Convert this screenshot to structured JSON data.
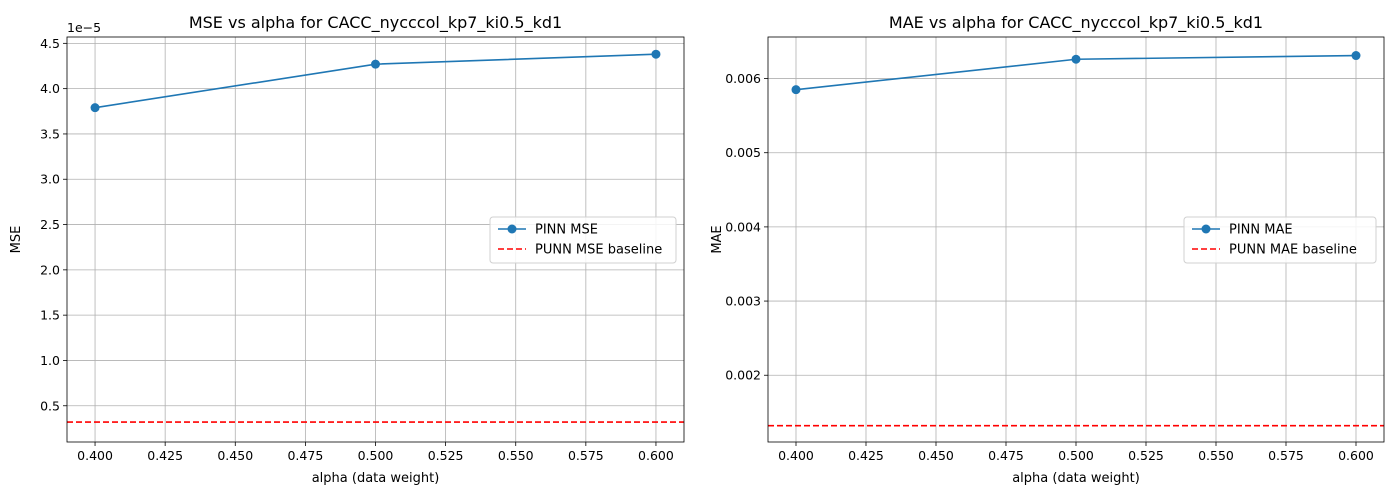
{
  "chart_data": [
    {
      "type": "line",
      "title": "MSE vs alpha for CACC_nycccol_kp7_ki0.5_kd1",
      "xlabel": "alpha (data weight)",
      "ylabel": "MSE",
      "y_offset_label": "1e−5",
      "xlim": [
        0.39,
        0.61
      ],
      "ylim": [
        0.1,
        4.57
      ],
      "x_ticks": [
        0.4,
        0.425,
        0.45,
        0.475,
        0.5,
        0.525,
        0.55,
        0.575,
        0.6
      ],
      "x_tick_labels": [
        "0.400",
        "0.425",
        "0.450",
        "0.475",
        "0.500",
        "0.525",
        "0.550",
        "0.575",
        "0.600"
      ],
      "y_ticks": [
        0.5,
        1.0,
        1.5,
        2.0,
        2.5,
        3.0,
        3.5,
        4.0,
        4.5
      ],
      "y_tick_labels": [
        "0.5",
        "1.0",
        "1.5",
        "2.0",
        "2.5",
        "3.0",
        "3.5",
        "4.0",
        "4.5"
      ],
      "grid": true,
      "legend_position": "center-right",
      "series": [
        {
          "name": "PINN MSE",
          "style": "solid-marker",
          "color": "#1f77b4",
          "x": [
            0.4,
            0.5,
            0.6
          ],
          "y": [
            3.79,
            4.27,
            4.38
          ]
        }
      ],
      "baseline": {
        "name": "PUNN MSE baseline",
        "style": "dashed",
        "color": "#ff0000",
        "y": 0.32
      }
    },
    {
      "type": "line",
      "title": "MAE vs alpha for CACC_nycccol_kp7_ki0.5_kd1",
      "xlabel": "alpha (data weight)",
      "ylabel": "MAE",
      "y_offset_label": "",
      "xlim": [
        0.39,
        0.61
      ],
      "ylim": [
        0.0011,
        0.00656
      ],
      "x_ticks": [
        0.4,
        0.425,
        0.45,
        0.475,
        0.5,
        0.525,
        0.55,
        0.575,
        0.6
      ],
      "x_tick_labels": [
        "0.400",
        "0.425",
        "0.450",
        "0.475",
        "0.500",
        "0.525",
        "0.550",
        "0.575",
        "0.600"
      ],
      "y_ticks": [
        0.002,
        0.003,
        0.004,
        0.005,
        0.006
      ],
      "y_tick_labels": [
        "0.002",
        "0.003",
        "0.004",
        "0.005",
        "0.006"
      ],
      "grid": true,
      "legend_position": "center-right",
      "series": [
        {
          "name": "PINN MAE",
          "style": "solid-marker",
          "color": "#1f77b4",
          "x": [
            0.4,
            0.5,
            0.6
          ],
          "y": [
            0.00585,
            0.00626,
            0.00631
          ]
        }
      ],
      "baseline": {
        "name": "PUNN MAE baseline",
        "style": "dashed",
        "color": "#ff0000",
        "y": 0.00132
      }
    }
  ]
}
